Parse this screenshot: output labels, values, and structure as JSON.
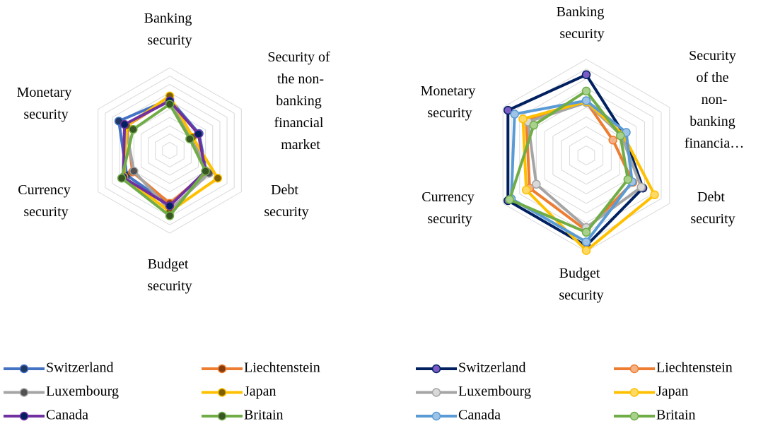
{
  "chart_data": [
    {
      "type": "radar",
      "categories": [
        "Banking security",
        "Security of the non-banking financial market",
        "Debt security",
        "Budget security",
        "Currency security",
        "Monetary security"
      ],
      "rlim": [
        0,
        1
      ],
      "rticks": [
        0.1,
        0.2,
        0.3,
        0.4,
        0.5,
        0.6,
        0.7,
        0.8,
        0.9,
        1
      ],
      "grid": true,
      "series": [
        {
          "name": "Switzerland",
          "color": "#4472c4",
          "marker_color": "#1f3864",
          "values": [
            0.62,
            0.41,
            0.51,
            0.66,
            0.6,
            0.71
          ]
        },
        {
          "name": "Liechtenstein",
          "color": "#ed7d31",
          "marker_color": "#843c0c",
          "values": [
            0.62,
            0.3,
            0.52,
            0.64,
            0.52,
            0.6
          ]
        },
        {
          "name": "Luxembourg",
          "color": "#a5a5a5",
          "marker_color": "#525252",
          "values": [
            0.63,
            0.3,
            0.55,
            0.72,
            0.5,
            0.62
          ]
        },
        {
          "name": "Japan",
          "color": "#ffc000",
          "marker_color": "#7f6000",
          "values": [
            0.66,
            0.32,
            0.67,
            0.74,
            0.64,
            0.6
          ]
        },
        {
          "name": "Canada",
          "color": "#7030a0",
          "marker_color": "#002060",
          "values": [
            0.6,
            0.4,
            0.5,
            0.67,
            0.65,
            0.63
          ]
        },
        {
          "name": "Britain",
          "color": "#70ad47",
          "marker_color": "#375623",
          "values": [
            0.56,
            0.28,
            0.5,
            0.79,
            0.67,
            0.51
          ]
        }
      ]
    },
    {
      "type": "radar",
      "categories": [
        "Banking security",
        "Security of the non-banking financia…",
        "Debt security",
        "Budget security",
        "Currency security",
        "Monetary security"
      ],
      "rlim": [
        0,
        1
      ],
      "rticks": [
        0.1,
        0.2,
        0.3,
        0.4,
        0.5,
        0.6,
        0.7,
        0.8,
        0.9,
        1
      ],
      "grid": true,
      "series": [
        {
          "name": "Switzerland",
          "color": "#002060",
          "marker_color": "#7b5cc4",
          "values": [
            0.84,
            0.45,
            0.68,
            0.94,
            0.94,
            0.94
          ]
        },
        {
          "name": "Liechtenstein",
          "color": "#ed7d31",
          "marker_color": "#f4b183",
          "values": [
            0.56,
            0.32,
            0.56,
            0.78,
            0.68,
            0.72
          ]
        },
        {
          "name": "Luxembourg",
          "color": "#a5a5a5",
          "marker_color": "#d9d9d9",
          "values": [
            0.55,
            0.42,
            0.66,
            0.75,
            0.6,
            0.7
          ]
        },
        {
          "name": "Japan",
          "color": "#ffc000",
          "marker_color": "#ffd966",
          "values": [
            0.56,
            0.44,
            0.82,
            0.99,
            0.72,
            0.76
          ]
        },
        {
          "name": "Canada",
          "color": "#5b9bd5",
          "marker_color": "#9dc3e6",
          "values": [
            0.57,
            0.48,
            0.55,
            0.9,
            0.9,
            0.86
          ]
        },
        {
          "name": "Britain",
          "color": "#70ad47",
          "marker_color": "#a9d18e",
          "values": [
            0.67,
            0.41,
            0.5,
            0.8,
            0.92,
            0.63
          ]
        }
      ]
    }
  ]
}
